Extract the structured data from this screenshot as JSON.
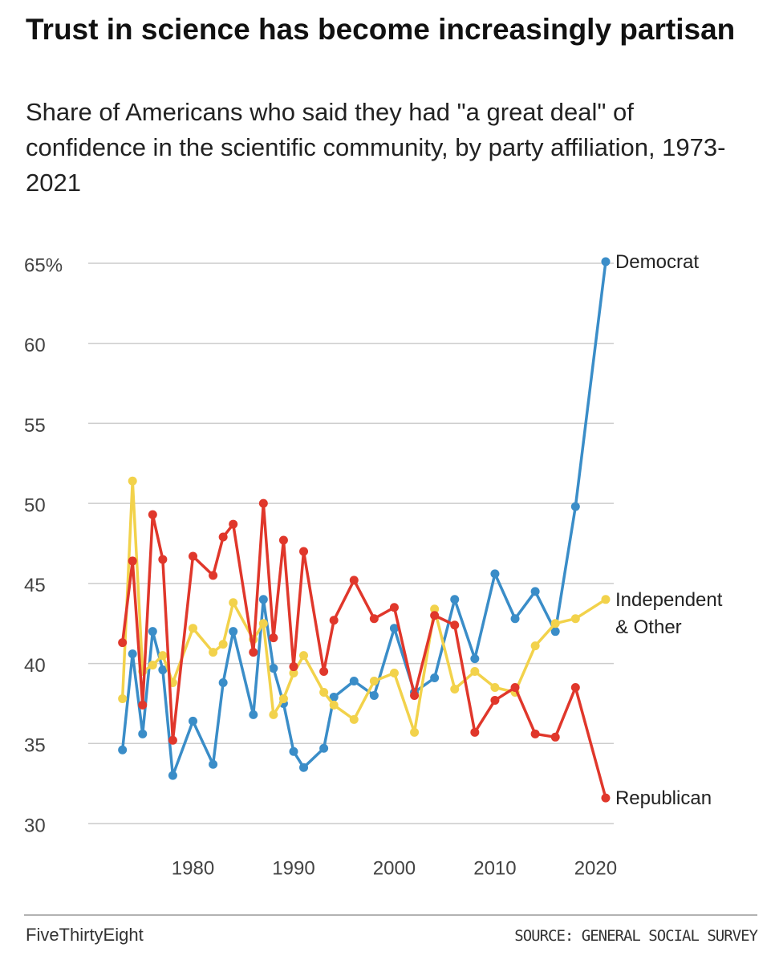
{
  "chart_data": {
    "type": "line",
    "title": "Trust in science has become increasingly partisan",
    "subtitle": "Share of Americans who said they had \"a great deal\" of confidence in the scientific community, by party affiliation, 1973-2021",
    "credit": "FiveThirtyEight",
    "source": "SOURCE: GENERAL SOCIAL SURVEY",
    "x": [
      1973,
      1974,
      1975,
      1976,
      1977,
      1978,
      1980,
      1982,
      1983,
      1984,
      1986,
      1987,
      1988,
      1989,
      1990,
      1991,
      1993,
      1994,
      1996,
      1998,
      2000,
      2002,
      2004,
      2006,
      2008,
      2010,
      2012,
      2014,
      2016,
      2018,
      2021
    ],
    "series": [
      {
        "name": "Democrat",
        "color": "#3a8dc8",
        "values": [
          34.6,
          40.6,
          35.6,
          42.0,
          39.6,
          33.0,
          36.4,
          33.7,
          38.8,
          42.0,
          36.8,
          44.0,
          39.7,
          37.5,
          34.5,
          33.5,
          34.7,
          37.9,
          38.9,
          38.0,
          42.2,
          38.2,
          39.1,
          44.0,
          40.3,
          45.6,
          42.8,
          44.5,
          42.0,
          49.8,
          65.1
        ]
      },
      {
        "name": "Independent & Other",
        "color": "#f2d24b",
        "values": [
          37.8,
          51.4,
          39.5,
          39.9,
          40.5,
          38.8,
          42.2,
          40.7,
          41.2,
          43.8,
          41.5,
          42.5,
          36.8,
          37.8,
          39.4,
          40.5,
          38.2,
          37.4,
          36.5,
          38.9,
          39.4,
          35.7,
          43.4,
          38.4,
          39.5,
          38.5,
          38.2,
          41.1,
          42.5,
          42.8,
          44.0
        ]
      },
      {
        "name": "Republican",
        "color": "#e0372b",
        "values": [
          41.3,
          46.4,
          37.4,
          49.3,
          46.5,
          35.2,
          46.7,
          45.5,
          47.9,
          48.7,
          40.7,
          50.0,
          41.6,
          47.7,
          39.8,
          47.0,
          39.5,
          42.7,
          45.2,
          42.8,
          43.5,
          38.0,
          43.0,
          42.4,
          35.7,
          37.7,
          38.5,
          35.6,
          35.4,
          38.5,
          31.6
        ]
      }
    ],
    "xlim": [
      1969.6,
      2021.8
    ],
    "xticks": [
      1980,
      1990,
      2000,
      2010,
      2020
    ],
    "ylim": [
      30,
      65
    ],
    "yticks": [
      30,
      35,
      40,
      45,
      50,
      55,
      60,
      {
        "value": 65,
        "label": "65%"
      }
    ],
    "grid": true
  }
}
